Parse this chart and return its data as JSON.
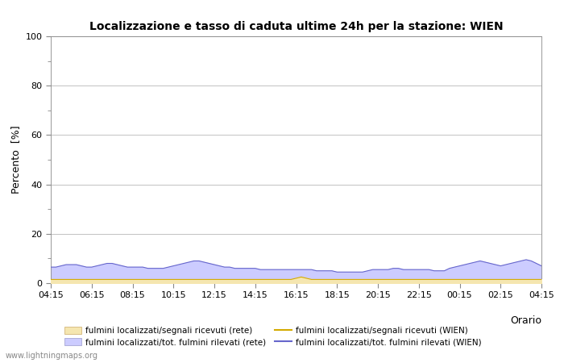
{
  "title": "Localizzazione e tasso di caduta ultime 24h per la stazione: WIEN",
  "xlabel": "Orario",
  "ylabel": "Percento  [%]",
  "ylim": [
    0,
    100
  ],
  "yticks": [
    0,
    20,
    40,
    60,
    80,
    100
  ],
  "yticks_minor": [
    10,
    30,
    50,
    70,
    90
  ],
  "x_labels": [
    "04:15",
    "06:15",
    "08:15",
    "10:15",
    "12:15",
    "14:15",
    "16:15",
    "18:15",
    "20:15",
    "22:15",
    "00:15",
    "02:15",
    "04:15"
  ],
  "n_points": 97,
  "fill_rete_color": "#f5e6b0",
  "fill_wien_color": "#ccccff",
  "line_rete_color": "#d4aa00",
  "line_wien_color": "#6666cc",
  "bg_color": "#ffffff",
  "plot_bg_color": "#ffffff",
  "grid_color": "#aaaaaa",
  "watermark": "www.lightningmaps.org",
  "legend_labels": [
    "fulmini localizzati/segnali ricevuti (rete)",
    "fulmini localizzati/segnali ricevuti (WIEN)",
    "fulmini localizzati/tot. fulmini rilevati (rete)",
    "fulmini localizzati/tot. fulmini rilevati (WIEN)"
  ],
  "fill_rete_data": [
    1.5,
    1.5,
    1.5,
    1.5,
    1.5,
    1.5,
    1.5,
    1.5,
    1.5,
    1.5,
    1.5,
    1.5,
    1.5,
    1.5,
    1.5,
    1.5,
    1.5,
    1.5,
    1.5,
    1.5,
    1.5,
    1.5,
    1.5,
    1.5,
    1.5,
    1.5,
    1.5,
    1.5,
    1.5,
    1.5,
    1.5,
    1.5,
    1.5,
    1.5,
    1.5,
    1.5,
    1.5,
    1.5,
    1.5,
    1.5,
    1.5,
    1.5,
    1.5,
    1.5,
    1.5,
    1.5,
    1.5,
    1.5,
    2.0,
    2.5,
    2.0,
    1.5,
    1.5,
    1.5,
    1.5,
    1.5,
    1.5,
    1.5,
    1.5,
    1.5,
    1.5,
    1.5,
    1.5,
    1.5,
    1.5,
    1.5,
    1.5,
    1.5,
    1.5,
    1.5,
    1.5,
    1.5,
    1.5,
    1.5,
    1.5,
    1.5,
    1.5,
    1.5,
    1.5,
    1.5,
    1.5,
    1.5,
    1.5,
    1.5,
    1.5,
    1.5,
    1.5,
    1.5,
    1.5,
    1.5,
    1.5,
    1.5,
    1.5,
    1.5,
    1.5,
    1.5,
    1.5
  ],
  "fill_wien_data": [
    6.5,
    6.5,
    7.0,
    7.5,
    7.5,
    7.5,
    7.0,
    6.5,
    6.5,
    7.0,
    7.5,
    8.0,
    8.0,
    7.5,
    7.0,
    6.5,
    6.5,
    6.5,
    6.5,
    6.0,
    6.0,
    6.0,
    6.0,
    6.5,
    7.0,
    7.5,
    8.0,
    8.5,
    9.0,
    9.0,
    8.5,
    8.0,
    7.5,
    7.0,
    6.5,
    6.5,
    6.0,
    6.0,
    6.0,
    6.0,
    6.0,
    5.5,
    5.5,
    5.5,
    5.5,
    5.5,
    5.5,
    5.5,
    5.5,
    5.5,
    5.5,
    5.5,
    5.0,
    5.0,
    5.0,
    5.0,
    4.5,
    4.5,
    4.5,
    4.5,
    4.5,
    4.5,
    5.0,
    5.5,
    5.5,
    5.5,
    5.5,
    6.0,
    6.0,
    5.5,
    5.5,
    5.5,
    5.5,
    5.5,
    5.5,
    5.0,
    5.0,
    5.0,
    6.0,
    6.5,
    7.0,
    7.5,
    8.0,
    8.5,
    9.0,
    8.5,
    8.0,
    7.5,
    7.0,
    7.5,
    8.0,
    8.5,
    9.0,
    9.5,
    9.0,
    8.0,
    7.0
  ]
}
